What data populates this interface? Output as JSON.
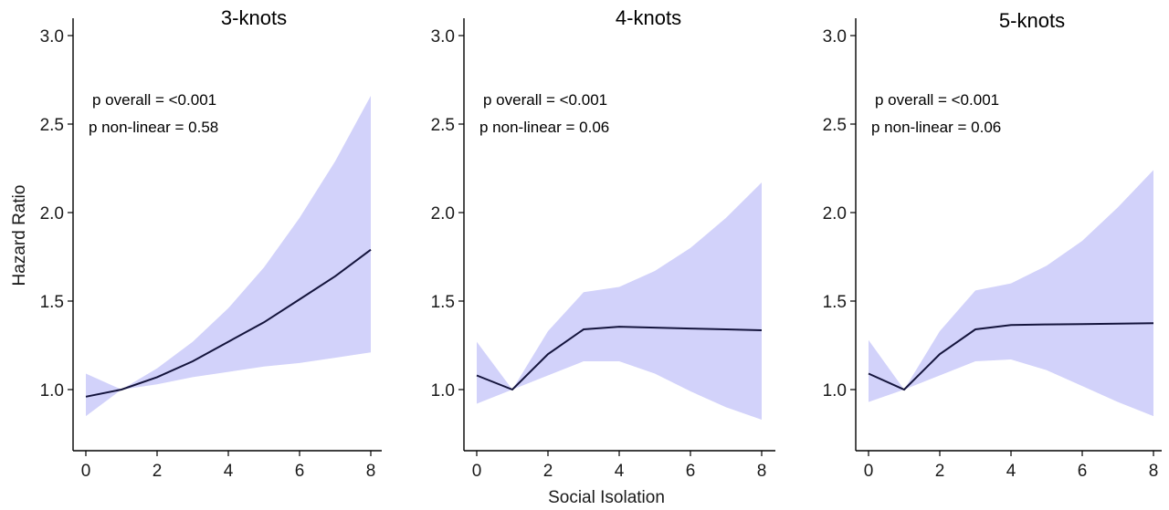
{
  "figure": {
    "ylabel": "Hazard Ratio",
    "xlabel": "Social Isolation"
  },
  "chart_data": [
    {
      "type": "line",
      "title": "3-knots",
      "annotations": [
        "p overall = <0.001",
        "p non-linear = 0.58"
      ],
      "xlim": [
        0,
        8
      ],
      "ylim": [
        0.68,
        3.1
      ],
      "xticks": [
        0,
        2,
        4,
        6,
        8
      ],
      "yticks": [
        1.0,
        1.5,
        2.0,
        2.5,
        3.0
      ],
      "x": [
        0,
        1,
        2,
        3,
        4,
        5,
        6,
        7,
        8
      ],
      "y": [
        0.96,
        1.0,
        1.07,
        1.16,
        1.27,
        1.38,
        1.51,
        1.64,
        1.79
      ],
      "ci_lower": [
        0.85,
        1.0,
        1.03,
        1.07,
        1.1,
        1.13,
        1.15,
        1.18,
        1.21
      ],
      "ci_upper": [
        1.09,
        1.0,
        1.12,
        1.27,
        1.46,
        1.69,
        1.97,
        2.29,
        2.66
      ],
      "colors": {
        "line": "#14143c",
        "band": "#d2d2fa"
      }
    },
    {
      "type": "line",
      "title": "4-knots",
      "annotations": [
        "p overall = <0.001",
        "p non-linear = 0.06"
      ],
      "xlim": [
        0,
        8
      ],
      "ylim": [
        0.68,
        3.1
      ],
      "xticks": [
        0,
        2,
        4,
        6,
        8
      ],
      "yticks": [
        1.0,
        1.5,
        2.0,
        2.5,
        3.0
      ],
      "x": [
        0,
        1,
        2,
        3,
        4,
        5,
        6,
        7,
        8
      ],
      "y": [
        1.08,
        1.0,
        1.2,
        1.34,
        1.355,
        1.35,
        1.345,
        1.34,
        1.335
      ],
      "ci_lower": [
        0.92,
        1.0,
        1.08,
        1.16,
        1.16,
        1.09,
        0.99,
        0.9,
        0.83
      ],
      "ci_upper": [
        1.27,
        1.0,
        1.33,
        1.55,
        1.58,
        1.67,
        1.8,
        1.97,
        2.17
      ],
      "colors": {
        "line": "#14143c",
        "band": "#d2d2fa"
      }
    },
    {
      "type": "line",
      "title": "5-knots",
      "annotations": [
        "p overall = <0.001",
        "p non-linear = 0.06"
      ],
      "xlim": [
        0,
        8
      ],
      "ylim": [
        0.68,
        3.1
      ],
      "xticks": [
        0,
        2,
        4,
        6,
        8
      ],
      "yticks": [
        1.0,
        1.5,
        2.0,
        2.5,
        3.0
      ],
      "x": [
        0,
        1,
        2,
        3,
        4,
        5,
        6,
        7,
        8
      ],
      "y": [
        1.09,
        1.0,
        1.2,
        1.34,
        1.365,
        1.368,
        1.37,
        1.372,
        1.375
      ],
      "ci_lower": [
        0.93,
        1.0,
        1.08,
        1.16,
        1.17,
        1.11,
        1.02,
        0.93,
        0.85
      ],
      "ci_upper": [
        1.28,
        1.0,
        1.33,
        1.56,
        1.6,
        1.7,
        1.84,
        2.03,
        2.24
      ],
      "colors": {
        "line": "#14143c",
        "band": "#d2d2fa"
      }
    }
  ]
}
